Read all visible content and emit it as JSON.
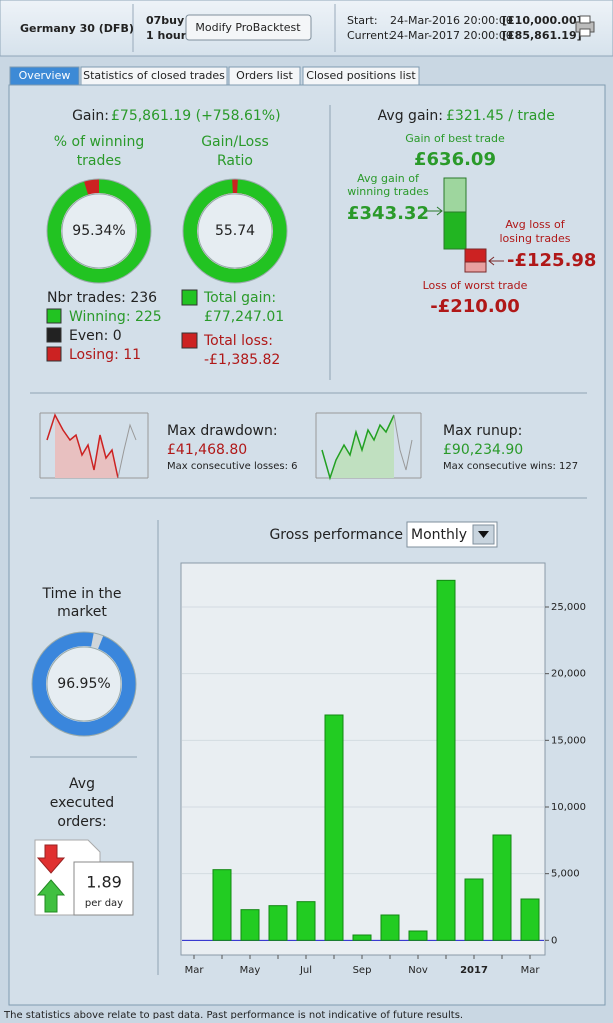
{
  "header": {
    "instrument": "Germany 30 (DFB)",
    "system": "07buy",
    "timeframe": "1 hour",
    "button": "Modify ProBacktest",
    "start_label": "Start:",
    "start_date": "24-Mar-2016 20:00:00",
    "start_capital": "[£10,000.00]",
    "current_label": "Current:",
    "current_date": "24-Mar-2017 20:00:00",
    "current_capital": "[£85,861.19]"
  },
  "tabs": [
    "Overview",
    "Statistics of closed trades",
    "Orders list",
    "Closed positions list"
  ],
  "overview": {
    "gain_label": "Gain:",
    "gain_value": "£75,861.19 (+758.61%)",
    "winning": {
      "title": [
        "% of winning",
        "trades"
      ],
      "value": 95.34,
      "label": "95.34%"
    },
    "ratio": {
      "title": [
        "Gain/Loss",
        "Ratio"
      ],
      "value": 55.74
    },
    "trades": {
      "total": "Nbr trades: 236",
      "winning": "Winning: 225",
      "even": "Even: 0",
      "losing": "Losing: 11"
    },
    "totals": {
      "gain_label": "Total gain:",
      "gain_value": "£77,247.01",
      "loss_label": "Total loss:",
      "loss_value": "-£1,385.82"
    },
    "avg": {
      "title_label": "Avg gain:",
      "title_value": "£321.45 / trade",
      "best_label": "Gain of best trade",
      "best_value": "£636.09",
      "avg_win_label": [
        "Avg gain of",
        "winning trades"
      ],
      "avg_win_value": "£343.32",
      "avg_loss_label": [
        "Avg loss of",
        "losing trades"
      ],
      "avg_loss_value": "-£125.98",
      "worst_label": "Loss of worst trade",
      "worst_value": "-£210.00"
    },
    "drawdown": {
      "label": "Max drawdown:",
      "value": "£41,468.80",
      "detail": "Max consecutive losses: 6"
    },
    "runup": {
      "label": "Max runup:",
      "value": "£90,234.90",
      "detail": "Max consecutive wins: 127"
    },
    "market": {
      "title": [
        "Time in the",
        "market"
      ],
      "value": 96.95,
      "label": "96.95%"
    },
    "orders": {
      "title": [
        "Avg",
        "executed",
        "orders:"
      ],
      "value": "1.89",
      "unit": "per day"
    }
  },
  "chart_data": {
    "type": "bar",
    "title": "Gross performance",
    "period": "Monthly",
    "categories": [
      "Mar",
      null,
      "May",
      null,
      "Jul",
      null,
      "Sep",
      null,
      "Nov",
      null,
      "2017",
      null,
      "Mar"
    ],
    "values": [
      0,
      5300,
      2300,
      2600,
      2900,
      16900,
      400,
      1900,
      700,
      27000,
      4600,
      7900,
      3100
    ],
    "color": "#22cc22",
    "ylim": [
      -1100,
      28300
    ],
    "yticks": [
      0,
      {
        "value": 5000,
        "label": "5,000"
      },
      {
        "value": 10000,
        "label": "10,000"
      },
      {
        "value": 15000,
        "label": "15,000"
      },
      {
        "value": 20000,
        "label": "20,000"
      },
      {
        "value": 25000,
        "label": "25,000"
      }
    ],
    "grid": true
  },
  "footer": "The statistics above relate to past data. Past performance is not indicative of future results."
}
